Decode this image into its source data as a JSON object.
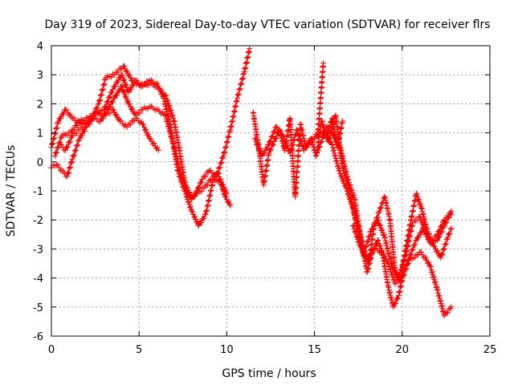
{
  "chart_data": {
    "type": "scatter",
    "title": "Day 319 of 2023, Sidereal Day-to-day VTEC variation (SDTVAR) for receiver flrs",
    "xlabel": "GPS time / hours",
    "ylabel": "SDTVAR / TECUs",
    "xlim": [
      0,
      25
    ],
    "ylim": [
      -6,
      4
    ],
    "xticks": [
      0,
      5,
      10,
      15,
      20,
      25
    ],
    "yticks": [
      -6,
      -5,
      -4,
      -3,
      -2,
      -1,
      0,
      1,
      2,
      3,
      4
    ],
    "grid": true,
    "marker": "+",
    "color": "#ff0000",
    "series": [
      {
        "name": "trace-1",
        "x": [
          0.0,
          0.3,
          0.6,
          0.9,
          1.2,
          1.6,
          2.0,
          2.5,
          3.0,
          3.5,
          4.0,
          4.4,
          4.8,
          5.2,
          5.6,
          6.0,
          6.5,
          7.0,
          7.3,
          7.6,
          8.0,
          8.3,
          8.6,
          9.0,
          9.4,
          9.8,
          10.2,
          10.6,
          11.0,
          11.3
        ],
        "y": [
          -0.2,
          -0.1,
          -0.3,
          -0.5,
          0.1,
          0.8,
          1.2,
          1.6,
          1.8,
          2.5,
          3.0,
          2.4,
          2.8,
          2.6,
          2.7,
          2.6,
          2.3,
          1.4,
          0.4,
          -0.7,
          -1.3,
          -1.0,
          -0.6,
          -0.3,
          -0.5,
          0.2,
          1.1,
          2.2,
          3.1,
          3.9
        ]
      },
      {
        "name": "trace-2",
        "x": [
          0.0,
          0.4,
          0.8,
          1.2,
          1.7,
          2.2,
          2.7,
          3.1,
          3.6,
          4.1,
          4.6,
          5.1,
          5.6,
          6.0,
          6.4,
          6.8,
          7.2,
          7.6,
          8.0,
          8.4,
          8.8,
          9.2,
          9.6,
          10.0
        ],
        "y": [
          0.5,
          1.4,
          1.8,
          1.5,
          1.3,
          1.4,
          2.0,
          2.9,
          3.0,
          3.3,
          2.8,
          2.6,
          2.8,
          2.7,
          2.2,
          1.2,
          -0.3,
          -1.0,
          -1.7,
          -2.2,
          -1.8,
          -0.7,
          -0.6,
          -1.1
        ]
      },
      {
        "name": "trace-3",
        "x": [
          0.2,
          0.6,
          1.1,
          1.6,
          2.1,
          2.6,
          3.1,
          3.5,
          3.9,
          4.3,
          4.8,
          5.2,
          5.6,
          6.1
        ],
        "y": [
          0.2,
          0.9,
          1.0,
          1.4,
          1.5,
          1.7,
          1.6,
          1.8,
          1.4,
          1.2,
          1.5,
          1.3,
          0.8,
          0.4
        ]
      },
      {
        "name": "trace-4",
        "x": [
          0.5,
          0.8,
          1.2,
          1.6,
          2.0,
          2.4,
          2.8,
          3.2,
          3.6,
          4.0,
          4.4,
          4.8,
          5.2,
          5.6,
          6.0,
          6.5,
          7.0,
          7.5,
          7.9,
          8.3,
          8.7,
          9.1,
          9.5,
          9.9,
          10.2
        ],
        "y": [
          0.6,
          0.4,
          0.9,
          1.1,
          1.3,
          1.5,
          1.4,
          1.8,
          2.2,
          2.6,
          2.0,
          1.6,
          1.8,
          1.9,
          1.8,
          1.6,
          0.5,
          -0.7,
          -1.2,
          -1.1,
          -0.9,
          -0.6,
          -0.4,
          -1.2,
          -1.5
        ]
      },
      {
        "name": "trace-5",
        "x": [
          11.5,
          11.8,
          12.1,
          12.4,
          12.7,
          13.0,
          13.3,
          13.6,
          13.9,
          14.2,
          14.5,
          14.8,
          15.1,
          15.4,
          15.7,
          16.0,
          16.3,
          16.6
        ],
        "y": [
          1.7,
          0.6,
          -0.8,
          0.3,
          0.7,
          1.1,
          0.4,
          1.5,
          -1.2,
          1.3,
          0.5,
          0.8,
          0.2,
          1.4,
          0.9,
          1.5,
          0.5,
          1.4
        ]
      },
      {
        "name": "trace-6",
        "x": [
          11.6,
          12.0,
          12.4,
          12.8,
          13.2,
          13.6,
          14.0,
          14.4,
          14.8,
          15.2,
          15.5
        ],
        "y": [
          0.8,
          0.2,
          0.6,
          1.2,
          0.9,
          0.3,
          1.1,
          0.4,
          0.7,
          1.0,
          3.4
        ]
      },
      {
        "name": "trace-7",
        "x": [
          15.0,
          15.5,
          16.0,
          16.4,
          16.8,
          17.2,
          17.6,
          18.0,
          18.3,
          18.6,
          18.9,
          19.2,
          19.5,
          19.8,
          20.1,
          20.4,
          20.7,
          21.0,
          21.3,
          21.6,
          22.0,
          22.4,
          22.8
        ],
        "y": [
          0.8,
          1.0,
          0.6,
          -0.3,
          -0.9,
          -1.6,
          -2.5,
          -3.8,
          -3.1,
          -2.7,
          -3.2,
          -4.3,
          -5.0,
          -4.6,
          -3.8,
          -3.4,
          -3.3,
          -3.1,
          -3.3,
          -3.6,
          -4.4,
          -5.3,
          -5.0
        ]
      },
      {
        "name": "trace-8",
        "x": [
          15.2,
          15.7,
          16.1,
          16.5,
          16.9,
          17.3,
          17.7,
          18.1,
          18.4,
          18.7,
          19.0,
          19.3,
          19.6,
          19.9,
          20.2,
          20.5,
          20.8,
          21.1,
          21.4,
          21.7,
          22.0,
          22.4,
          22.8
        ],
        "y": [
          0.4,
          1.2,
          0.9,
          0.4,
          -0.6,
          -1.3,
          -2.9,
          -3.5,
          -2.2,
          -1.7,
          -1.2,
          -2.0,
          -3.8,
          -4.1,
          -3.0,
          -2.0,
          -1.1,
          -1.6,
          -2.3,
          -2.8,
          -2.7,
          -2.2,
          -1.7
        ]
      },
      {
        "name": "trace-9",
        "x": [
          15.4,
          15.8,
          16.2,
          16.6,
          17.0,
          17.4,
          17.8,
          18.2,
          18.6,
          19.0,
          19.4,
          19.8,
          20.2,
          20.6,
          21.0,
          21.4,
          21.8,
          22.2,
          22.6,
          22.8
        ],
        "y": [
          1.4,
          0.7,
          1.6,
          -0.2,
          -1.0,
          -2.2,
          -3.2,
          -2.4,
          -2.0,
          -2.6,
          -3.6,
          -4.0,
          -3.2,
          -2.1,
          -1.9,
          -2.5,
          -2.9,
          -3.3,
          -2.6,
          -2.3
        ]
      },
      {
        "name": "trace-10",
        "x": [
          17.2,
          17.6,
          18.0,
          18.4,
          18.8,
          19.2,
          19.6,
          20.0,
          20.4,
          20.8,
          21.2,
          21.6,
          22.0,
          22.4,
          22.8
        ],
        "y": [
          -2.2,
          -2.9,
          -3.4,
          -3.0,
          -3.1,
          -3.5,
          -4.2,
          -4.0,
          -3.3,
          -2.7,
          -2.3,
          -2.8,
          -2.5,
          -2.0,
          -1.8
        ]
      }
    ]
  }
}
